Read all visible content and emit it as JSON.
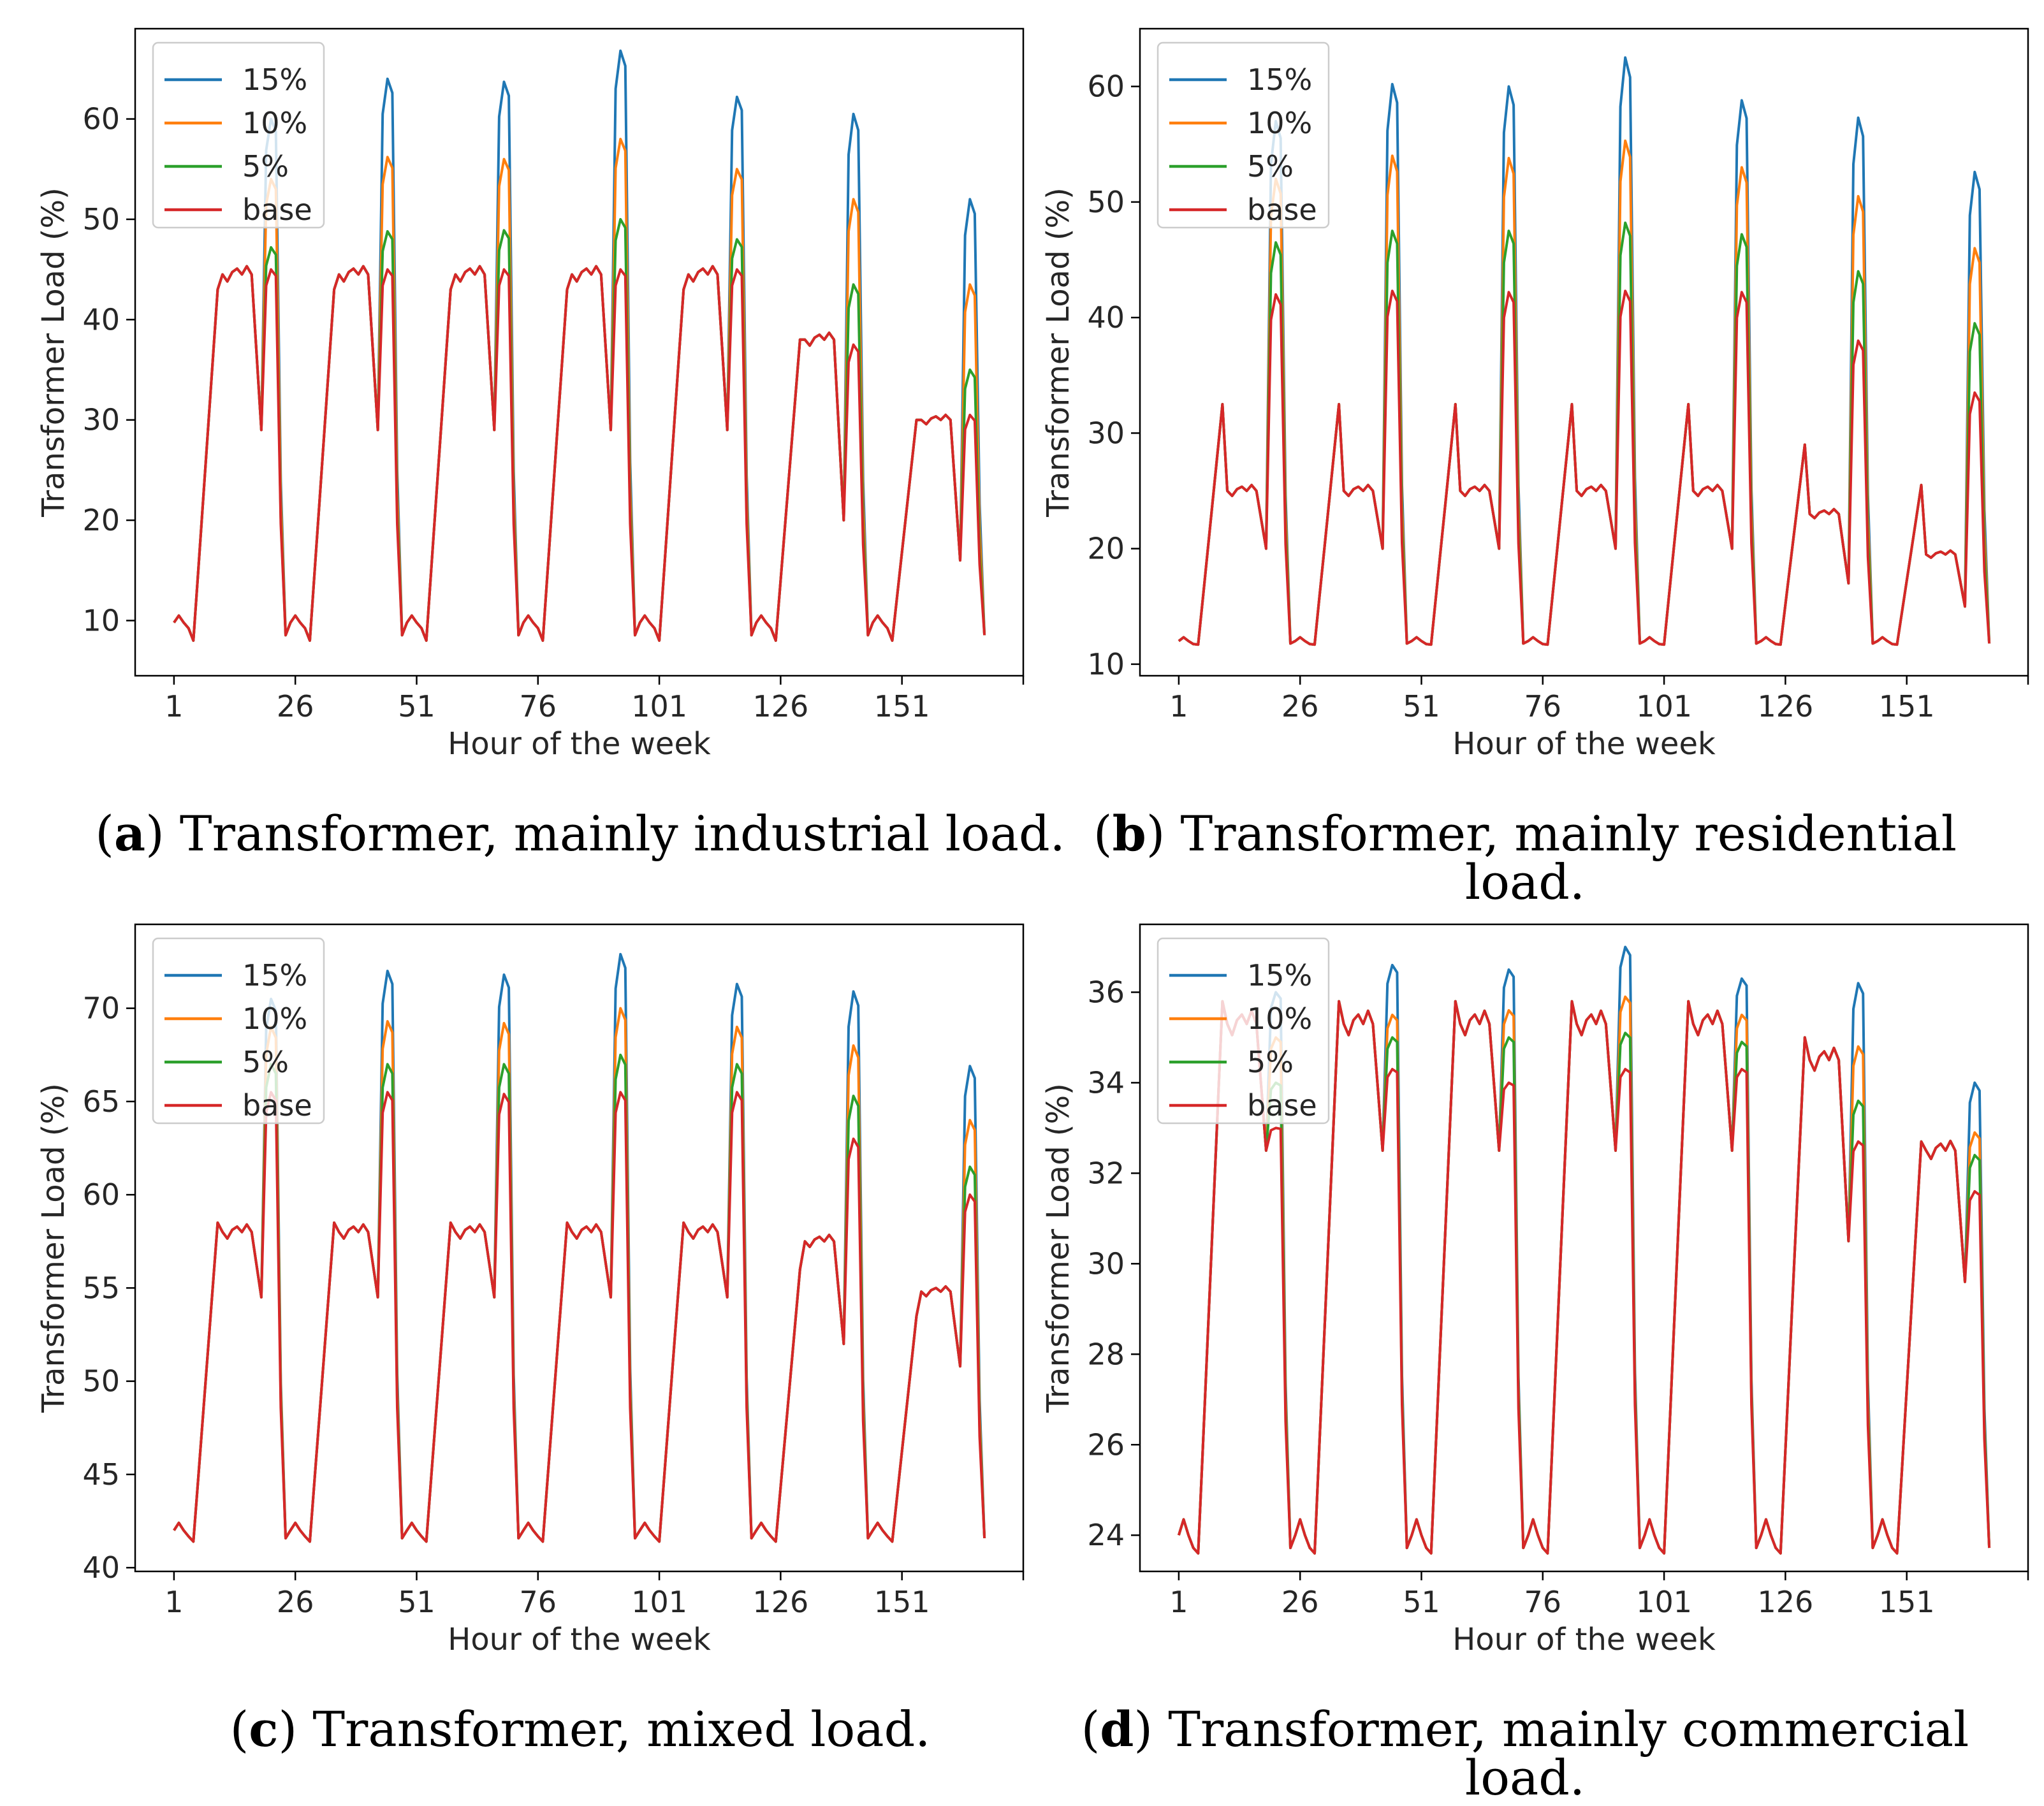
{
  "figure": {
    "xlabel": "Hour of the week",
    "ylabel": "Transformer Load (%)",
    "xticks": [
      1,
      26,
      51,
      76,
      101,
      126,
      151
    ],
    "legend": [
      "15%",
      "10%",
      "5%",
      "base"
    ],
    "colors": {
      "15%": "#1f77b4",
      "10%": "#ff7f0e",
      "5%": "#2ca02c",
      "base": "#d62728"
    }
  },
  "chart_data": [
    {
      "type": "line",
      "panel": "a",
      "caption_letter": "a",
      "caption_text": " Transformer, mainly industrial load.",
      "xlabel": "Hour of the week",
      "ylabel": "Transformer Load (%)",
      "xlim": [
        -7,
        176
      ],
      "ylim": [
        4.5,
        69
      ],
      "yticks": [
        10,
        20,
        30,
        40,
        50,
        60
      ],
      "legend_position": "upper-left",
      "profile": {
        "night": 9.8,
        "night_min": 8,
        "morning": 43,
        "day": 44.5,
        "dip": 29,
        "weekend": [
          {
            "morning": 38,
            "day": 38,
            "dip": 20
          },
          {
            "morning": 30,
            "day": 30,
            "dip": 16
          }
        ],
        "peaks": {
          "base": [
            45.0,
            45.0,
            45.0,
            45.0,
            45.0,
            37.5,
            30.5
          ],
          "5%": [
            47.2,
            48.8,
            48.9,
            50.0,
            48.0,
            43.5,
            35.0
          ],
          "10%": [
            54.0,
            56.2,
            56.0,
            58.0,
            55.0,
            52.0,
            43.5
          ],
          "15%": [
            60.0,
            64.0,
            63.7,
            66.8,
            62.2,
            60.5,
            52.0
          ]
        }
      }
    },
    {
      "type": "line",
      "panel": "b",
      "caption_letter": "b",
      "caption_text": " Transformer, mainly residential load.",
      "xlabel": "Hour of the week",
      "ylabel": "Transformer Load (%)",
      "xlim": [
        -7,
        176
      ],
      "ylim": [
        9,
        65
      ],
      "yticks": [
        10,
        20,
        30,
        40,
        50,
        60
      ],
      "legend_position": "upper-left",
      "profile": {
        "night": 12.0,
        "night_min": 11.7,
        "morning": 32.5,
        "day": 25,
        "dip": 20,
        "weekend": [
          {
            "morning": 29,
            "day": 23,
            "dip": 17
          },
          {
            "morning": 25.5,
            "day": 19.5,
            "dip": 15
          }
        ],
        "peaks": {
          "base": [
            42.0,
            42.3,
            42.2,
            42.3,
            42.2,
            38.0,
            33.5
          ],
          "5%": [
            46.5,
            47.5,
            47.5,
            48.2,
            47.2,
            44.0,
            39.5
          ],
          "10%": [
            52.0,
            54.0,
            53.8,
            55.3,
            53.0,
            50.5,
            46.0
          ],
          "15%": [
            57.0,
            60.2,
            60.0,
            62.5,
            58.8,
            57.3,
            52.6
          ]
        }
      }
    },
    {
      "type": "line",
      "panel": "c",
      "caption_letter": "c",
      "caption_text": " Transformer, mixed load.",
      "xlabel": "Hour of the week",
      "ylabel": "Transformer Load (%)",
      "xlim": [
        -7,
        176
      ],
      "ylim": [
        39.8,
        74.5
      ],
      "yticks": [
        40,
        45,
        50,
        55,
        60,
        65,
        70
      ],
      "legend_position": "upper-left",
      "profile": {
        "night": 42.0,
        "night_min": 41.4,
        "morning": 58.5,
        "day": 58,
        "dip": 54.5,
        "weekend": [
          {
            "morning": 56,
            "day": 57.5,
            "dip": 52
          },
          {
            "morning": 53.5,
            "day": 54.8,
            "dip": 50.8
          }
        ],
        "peaks": {
          "base": [
            65.5,
            65.5,
            65.4,
            65.5,
            65.5,
            63.0,
            60.0
          ],
          "5%": [
            67.0,
            67.0,
            67.0,
            67.5,
            67.0,
            65.3,
            61.5
          ],
          "10%": [
            69.0,
            69.3,
            69.2,
            70.0,
            69.0,
            68.0,
            64.0
          ],
          "15%": [
            70.5,
            72.0,
            71.8,
            72.9,
            71.3,
            70.9,
            66.9
          ]
        }
      }
    },
    {
      "type": "line",
      "panel": "d",
      "caption_letter": "d",
      "caption_text": " Transformer, mainly commercial load.",
      "xlabel": "Hour of the week",
      "ylabel": "Transformer Load (%)",
      "xlim": [
        -7,
        176
      ],
      "ylim": [
        23.2,
        37.5
      ],
      "yticks": [
        24,
        26,
        28,
        30,
        32,
        34,
        36
      ],
      "legend_position": "upper-left",
      "profile": {
        "night": 24.0,
        "night_min": 23.6,
        "morning": 35.8,
        "day": 35.3,
        "dip": 32.5,
        "weekend": [
          {
            "morning": 35.0,
            "day": 34.5,
            "dip": 30.5
          },
          {
            "morning": 32.7,
            "day": 32.5,
            "dip": 29.6
          }
        ],
        "peaks": {
          "base": [
            33.0,
            34.3,
            34.0,
            34.3,
            34.3,
            32.7,
            31.6
          ],
          "5%": [
            34.0,
            35.0,
            35.0,
            35.1,
            34.9,
            33.6,
            32.4
          ],
          "10%": [
            35.0,
            35.5,
            35.6,
            35.9,
            35.5,
            34.8,
            32.9
          ],
          "15%": [
            36.0,
            36.6,
            36.5,
            37.0,
            36.3,
            36.2,
            34.0
          ]
        }
      }
    }
  ]
}
